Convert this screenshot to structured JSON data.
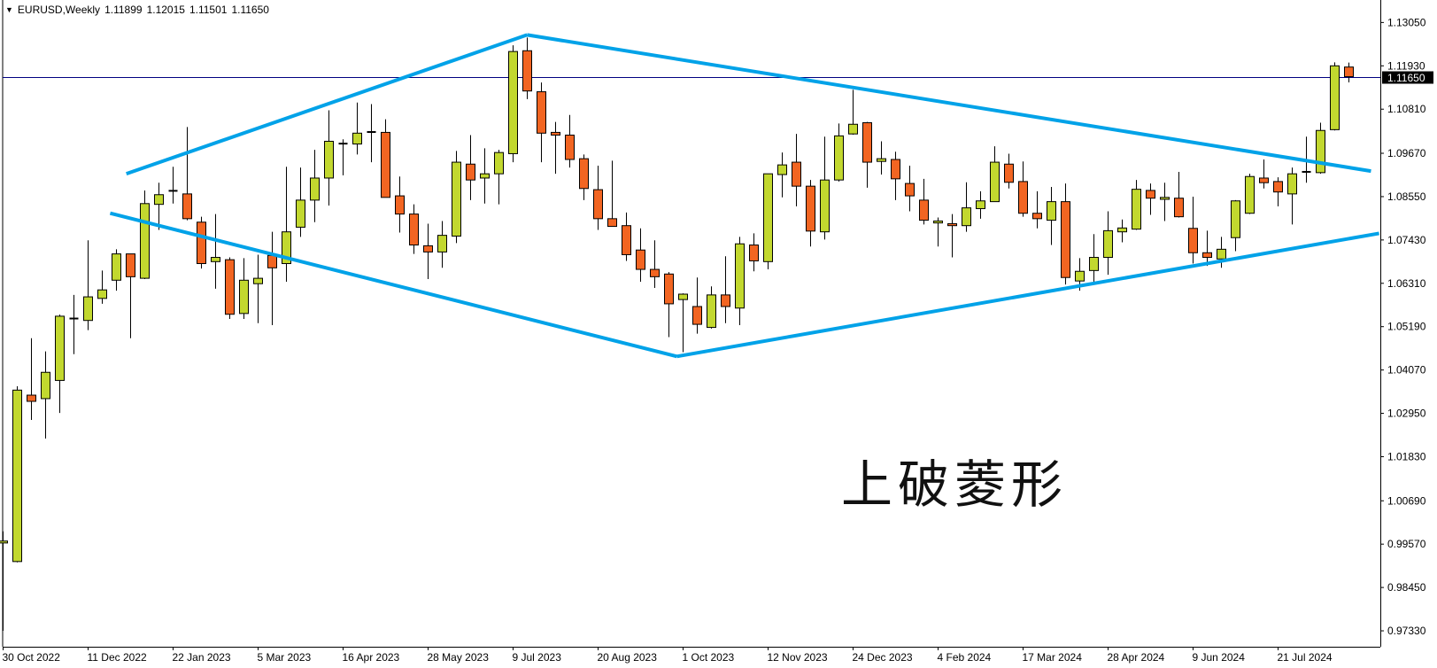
{
  "header": {
    "symbol": "EURUSD,Weekly",
    "open": "1.11899",
    "high": "1.12015",
    "low": "1.11501",
    "close": "1.11650",
    "menu_icon": "triangle-down-icon"
  },
  "annotation": "上破菱形",
  "chart_data": {
    "type": "candlestick",
    "title": "EURUSD,Weekly",
    "colors": {
      "bull": "#C2D82F",
      "bear": "#F26522",
      "outline": "#000000",
      "trendline": "#00A2E8",
      "price_line": "#000080"
    },
    "ylim": [
      0.9733,
      1.1305
    ],
    "y_ticks": [
      "1.13050",
      "1.11930",
      "1.10810",
      "1.09670",
      "1.08550",
      "1.07430",
      "1.06310",
      "1.05190",
      "1.04070",
      "1.02950",
      "1.01830",
      "1.00690",
      "0.99570",
      "0.98450",
      "0.97330"
    ],
    "x_ticks": [
      {
        "date": "2022-10-30",
        "label": "30 Oct 2022"
      },
      {
        "date": "2022-12-11",
        "label": "11 Dec 2022"
      },
      {
        "date": "2023-01-22",
        "label": "22 Jan 2023"
      },
      {
        "date": "2023-03-05",
        "label": "5 Mar 2023"
      },
      {
        "date": "2023-04-16",
        "label": "16 Apr 2023"
      },
      {
        "date": "2023-05-28",
        "label": "28 May 2023"
      },
      {
        "date": "2023-07-09",
        "label": "9 Jul 2023"
      },
      {
        "date": "2023-08-20",
        "label": "20 Aug 2023"
      },
      {
        "date": "2023-10-01",
        "label": "1 Oct 2023"
      },
      {
        "date": "2023-11-12",
        "label": "12 Nov 2023"
      },
      {
        "date": "2023-12-24",
        "label": "24 Dec 2023"
      },
      {
        "date": "2024-02-04",
        "label": "4 Feb 2024"
      },
      {
        "date": "2024-03-17",
        "label": "17 Mar 2024"
      },
      {
        "date": "2024-04-28",
        "label": "28 Apr 2024"
      },
      {
        "date": "2024-06-09",
        "label": "9 Jun 2024"
      },
      {
        "date": "2024-07-21",
        "label": "21 Jul 2024"
      }
    ],
    "current_price": "1.11650",
    "candle_fields": [
      "date",
      "open",
      "high",
      "low",
      "close"
    ],
    "candles": [
      [
        "2022-10-30",
        0.996,
        0.999,
        0.9733,
        0.9965
      ],
      [
        "2022-11-06",
        0.9912,
        1.0365,
        0.991,
        1.0355
      ],
      [
        "2022-11-13",
        1.0342,
        1.0489,
        1.0278,
        1.0326
      ],
      [
        "2022-11-20",
        1.0333,
        1.0455,
        1.023,
        1.0401
      ],
      [
        "2022-11-27",
        1.038,
        1.055,
        1.0296,
        1.0546
      ],
      [
        "2022-12-04",
        1.0538,
        1.0601,
        1.0448,
        1.054
      ],
      [
        "2022-12-11",
        1.0535,
        1.0742,
        1.051,
        1.0596
      ],
      [
        "2022-12-18",
        1.0592,
        1.0664,
        1.0578,
        1.0614
      ],
      [
        "2022-12-25",
        1.0639,
        1.0719,
        1.0612,
        1.0707
      ],
      [
        "2023-01-01",
        1.0707,
        1.0707,
        1.0489,
        1.0648
      ],
      [
        "2023-01-08",
        1.0644,
        1.0871,
        1.0642,
        1.0837
      ],
      [
        "2023-01-15",
        1.0835,
        1.0891,
        1.0769,
        1.086
      ],
      [
        "2023-01-22",
        1.0868,
        1.0932,
        1.0837,
        1.087
      ],
      [
        "2023-01-29",
        1.0862,
        1.1035,
        1.0794,
        1.0798
      ],
      [
        "2023-02-05",
        1.0789,
        1.0803,
        1.0669,
        1.0682
      ],
      [
        "2023-02-12",
        1.0687,
        1.081,
        1.0617,
        1.0698
      ],
      [
        "2023-02-19",
        1.0692,
        1.0698,
        1.0539,
        1.0551
      ],
      [
        "2023-02-26",
        1.0553,
        1.0696,
        1.0539,
        1.0639
      ],
      [
        "2023-03-05",
        1.063,
        1.0705,
        1.0528,
        1.0644
      ],
      [
        "2023-03-12",
        1.0703,
        1.0764,
        1.0523,
        1.0671
      ],
      [
        "2023-03-19",
        1.0682,
        1.0932,
        1.0635,
        1.0764
      ],
      [
        "2023-03-26",
        1.0776,
        1.093,
        1.0751,
        1.0846
      ],
      [
        "2023-04-02",
        1.0846,
        1.0976,
        1.0789,
        1.0903
      ],
      [
        "2023-04-09",
        1.0903,
        1.1078,
        1.0832,
        1.0998
      ],
      [
        "2023-04-16",
        1.099,
        1.1003,
        1.091,
        1.0992
      ],
      [
        "2023-04-23",
        1.0991,
        1.1098,
        1.0964,
        1.1019
      ],
      [
        "2023-04-30",
        1.1022,
        1.1094,
        1.0944,
        1.102
      ],
      [
        "2023-05-07",
        1.1021,
        1.1055,
        1.0853,
        1.0853
      ],
      [
        "2023-05-14",
        1.0857,
        1.0907,
        1.0762,
        1.081
      ],
      [
        "2023-05-21",
        1.081,
        1.0835,
        1.0707,
        1.073
      ],
      [
        "2023-05-28",
        1.0728,
        1.0785,
        1.0642,
        1.0712
      ],
      [
        "2023-06-04",
        1.0712,
        1.0792,
        1.0671,
        1.0755
      ],
      [
        "2023-06-11",
        1.0753,
        1.0973,
        1.0735,
        1.0944
      ],
      [
        "2023-06-18",
        1.0939,
        1.1014,
        1.0846,
        1.0898
      ],
      [
        "2023-06-25",
        1.0903,
        1.098,
        1.0837,
        1.0914
      ],
      [
        "2023-07-02",
        1.0914,
        1.0976,
        1.0835,
        1.0969
      ],
      [
        "2023-07-09",
        1.0966,
        1.1246,
        1.0944,
        1.123
      ],
      [
        "2023-07-16",
        1.1232,
        1.1266,
        1.1107,
        1.1128
      ],
      [
        "2023-07-23",
        1.1126,
        1.115,
        1.0944,
        1.1019
      ],
      [
        "2023-07-30",
        1.1021,
        1.1048,
        1.0914,
        1.1014
      ],
      [
        "2023-08-06",
        1.1014,
        1.1066,
        1.093,
        1.0951
      ],
      [
        "2023-08-13",
        1.0953,
        1.0964,
        1.0846,
        1.0876
      ],
      [
        "2023-08-20",
        1.0873,
        1.0935,
        1.0769,
        1.0798
      ],
      [
        "2023-08-27",
        1.0798,
        1.0948,
        1.0778,
        1.0778
      ],
      [
        "2023-09-03",
        1.078,
        1.0814,
        1.0689,
        1.0705
      ],
      [
        "2023-09-10",
        1.0717,
        1.0773,
        1.0635,
        1.0667
      ],
      [
        "2023-09-17",
        1.0667,
        1.0742,
        1.0619,
        1.0648
      ],
      [
        "2023-09-24",
        1.0655,
        1.066,
        1.0492,
        1.0578
      ],
      [
        "2023-10-01",
        1.0589,
        1.0605,
        1.0453,
        1.0603
      ],
      [
        "2023-10-08",
        1.0571,
        1.0646,
        1.0501,
        1.0525
      ],
      [
        "2023-10-15",
        1.0517,
        1.0623,
        1.0514,
        1.0601
      ],
      [
        "2023-10-22",
        1.0601,
        1.0701,
        1.0528,
        1.0571
      ],
      [
        "2023-10-29",
        1.0567,
        1.0751,
        1.0523,
        1.0733
      ],
      [
        "2023-11-05",
        1.073,
        1.076,
        1.0662,
        1.0689
      ],
      [
        "2023-11-12",
        1.0687,
        1.0914,
        1.0667,
        1.0914
      ],
      [
        "2023-11-19",
        1.0912,
        1.0969,
        1.0853,
        1.0937
      ],
      [
        "2023-11-26",
        1.0944,
        1.1017,
        1.083,
        1.0882
      ],
      [
        "2023-12-03",
        1.0882,
        1.0898,
        1.0726,
        1.0766
      ],
      [
        "2023-12-10",
        1.0764,
        1.101,
        1.0744,
        1.0898
      ],
      [
        "2023-12-17",
        1.0898,
        1.1044,
        1.0894,
        1.1012
      ],
      [
        "2023-12-24",
        1.1017,
        1.1131,
        1.1015,
        1.1042
      ],
      [
        "2023-12-31",
        1.1046,
        1.1048,
        1.0878,
        1.0944
      ],
      [
        "2024-01-07",
        1.0946,
        1.0998,
        1.0912,
        1.0953
      ],
      [
        "2024-01-14",
        1.0951,
        1.0971,
        1.0846,
        1.0901
      ],
      [
        "2024-01-21",
        1.0889,
        1.0935,
        1.0817,
        1.0857
      ],
      [
        "2024-01-28",
        1.0846,
        1.0901,
        1.0783,
        1.0794
      ],
      [
        "2024-02-04",
        1.0787,
        1.0801,
        1.0726,
        1.0792
      ],
      [
        "2024-02-11",
        1.0785,
        1.081,
        1.0698,
        1.078
      ],
      [
        "2024-02-18",
        1.078,
        1.0892,
        1.0764,
        1.0826
      ],
      [
        "2024-02-25",
        1.0824,
        1.0869,
        1.0798,
        1.0844
      ],
      [
        "2024-03-03",
        1.0842,
        1.0985,
        1.0842,
        1.0944
      ],
      [
        "2024-03-10",
        1.0939,
        1.0966,
        1.0876,
        1.0892
      ],
      [
        "2024-03-17",
        1.0894,
        1.0946,
        1.0803,
        1.0812
      ],
      [
        "2024-03-24",
        1.0812,
        1.0869,
        1.0773,
        1.0798
      ],
      [
        "2024-03-31",
        1.0794,
        1.088,
        1.073,
        1.0842
      ],
      [
        "2024-04-07",
        1.0842,
        1.0889,
        1.0628,
        1.0646
      ],
      [
        "2024-04-14",
        1.0637,
        1.0696,
        1.0612,
        1.0662
      ],
      [
        "2024-04-21",
        1.0664,
        1.0758,
        1.0635,
        1.0698
      ],
      [
        "2024-04-28",
        1.0698,
        1.0817,
        1.0653,
        1.0767
      ],
      [
        "2024-05-05",
        1.0764,
        1.0796,
        1.0737,
        1.0774
      ],
      [
        "2024-05-12",
        1.0771,
        1.0898,
        1.0769,
        1.0874
      ],
      [
        "2024-05-19",
        1.0871,
        1.0889,
        1.0808,
        1.0851
      ],
      [
        "2024-05-26",
        1.0848,
        1.0891,
        1.0792,
        1.0853
      ],
      [
        "2024-06-02",
        1.0851,
        1.0919,
        1.0801,
        1.0803
      ],
      [
        "2024-06-09",
        1.0773,
        1.0855,
        1.0682,
        1.071
      ],
      [
        "2024-06-16",
        1.071,
        1.0767,
        1.0676,
        1.0698
      ],
      [
        "2024-06-23",
        1.0694,
        1.0751,
        1.0671,
        1.0719
      ],
      [
        "2024-06-30",
        1.0749,
        1.0846,
        1.0714,
        1.0844
      ],
      [
        "2024-07-07",
        1.0812,
        1.0914,
        1.081,
        1.0907
      ],
      [
        "2024-07-14",
        1.0903,
        1.0951,
        1.0876,
        1.0891
      ],
      [
        "2024-07-21",
        1.0894,
        1.0905,
        1.083,
        1.0867
      ],
      [
        "2024-07-28",
        1.0862,
        1.093,
        1.0783,
        1.0914
      ],
      [
        "2024-08-04",
        1.0919,
        1.101,
        1.0891,
        1.0917
      ],
      [
        "2024-08-11",
        1.0917,
        1.1046,
        1.0914,
        1.1026
      ],
      [
        "2024-08-18",
        1.1028,
        1.1202,
        1.1026,
        1.1193
      ],
      [
        "2024-08-25",
        1.11899,
        1.12015,
        1.11501,
        1.1165
      ]
    ],
    "trendlines": [
      {
        "from": [
          "2022-12-30",
          1.0914
        ],
        "to": [
          "2023-07-16",
          1.1273
        ]
      },
      {
        "from": [
          "2023-07-16",
          1.1273
        ],
        "to": [
          "2024-09-05",
          1.0921
        ]
      },
      {
        "from": [
          "2022-12-22",
          1.0812
        ],
        "to": [
          "2023-09-28",
          1.0442
        ]
      },
      {
        "from": [
          "2023-09-28",
          1.0442
        ],
        "to": [
          "2024-09-09",
          1.076
        ]
      }
    ]
  }
}
